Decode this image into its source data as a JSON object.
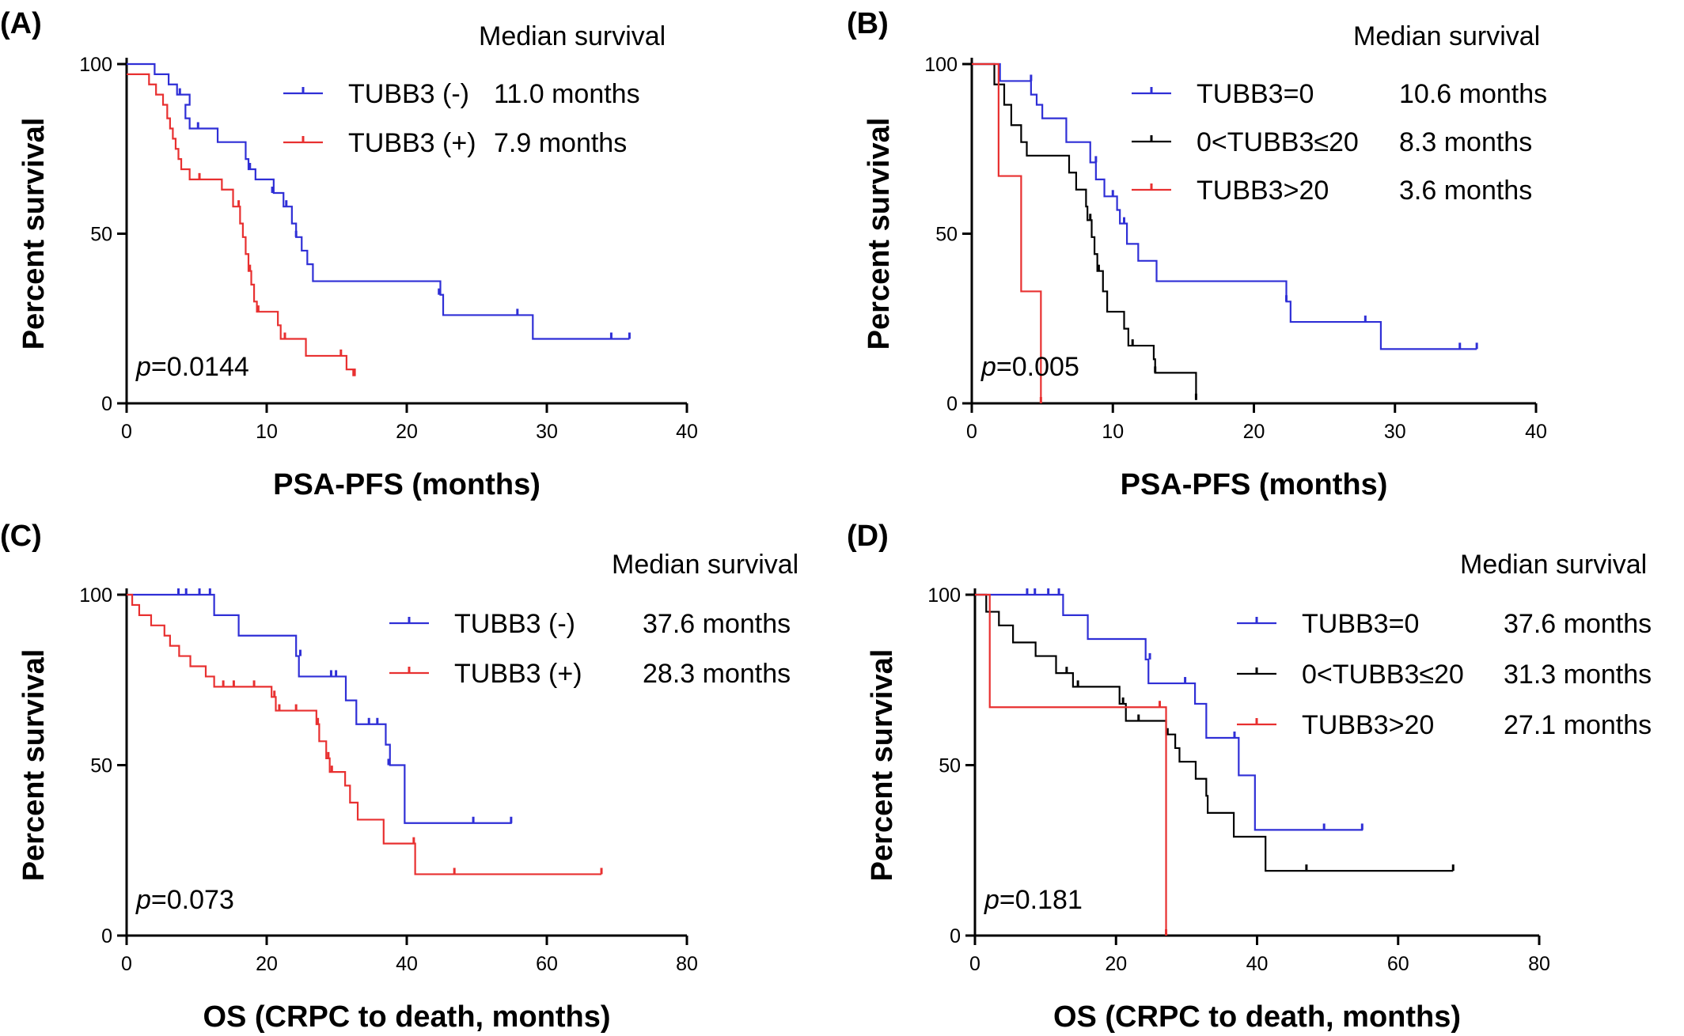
{
  "legend_heading": "Median survival",
  "p_prefix": "p",
  "chart_data": [
    {
      "panel": "(A)",
      "type": "line",
      "xlabel": "PSA-PFS (months)",
      "ylabel": "Percent survival",
      "xlim": [
        0,
        40
      ],
      "xticks": [
        0,
        10,
        20,
        30,
        40
      ],
      "xtick_labels": [
        "0",
        "10",
        "20",
        "30",
        "40"
      ],
      "ylim": [
        0,
        100
      ],
      "yticks": [
        0,
        50,
        100
      ],
      "ytick_labels": [
        "0",
        "50",
        "100"
      ],
      "p_value": "=0.0144",
      "series": [
        {
          "name": "TUBB3 (-)",
          "median": "11.0 months",
          "color": "#2f2fd6",
          "steps": [
            [
              0,
              100
            ],
            [
              2,
              97
            ],
            [
              3,
              94
            ],
            [
              3.6,
              91
            ],
            [
              4.5,
              88
            ],
            [
              4.2,
              84
            ],
            [
              4.5,
              81
            ],
            [
              6.5,
              77
            ],
            [
              8.5,
              72
            ],
            [
              8.7,
              69
            ],
            [
              9.2,
              66
            ],
            [
              10.5,
              62
            ],
            [
              11.2,
              58
            ],
            [
              11.8,
              53
            ],
            [
              12.1,
              49
            ],
            [
              12.5,
              45
            ],
            [
              12.9,
              41
            ],
            [
              13.3,
              36
            ],
            [
              22.4,
              32
            ],
            [
              22.6,
              26
            ],
            [
              29,
              19
            ],
            [
              35.9,
              19
            ]
          ],
          "censors": [
            [
              3.8,
              91
            ],
            [
              5.1,
              81
            ],
            [
              8.8,
              69
            ],
            [
              10.4,
              62
            ],
            [
              11.4,
              58
            ],
            [
              12.1,
              49
            ],
            [
              22.3,
              32
            ],
            [
              27.9,
              26
            ],
            [
              34.6,
              19
            ],
            [
              35.9,
              19
            ]
          ]
        },
        {
          "name": "TUBB3 (+)",
          "median": "7.9 months",
          "color": "#e83030",
          "steps": [
            [
              0,
              97
            ],
            [
              1.6,
              94
            ],
            [
              2.1,
              91
            ],
            [
              2.6,
              88
            ],
            [
              2.9,
              84
            ],
            [
              3.1,
              81
            ],
            [
              3.3,
              78
            ],
            [
              3.5,
              75
            ],
            [
              3.7,
              72
            ],
            [
              3.9,
              69
            ],
            [
              4.5,
              66
            ],
            [
              6.8,
              63
            ],
            [
              7.6,
              58
            ],
            [
              8.1,
              53
            ],
            [
              8.3,
              49
            ],
            [
              8.5,
              44
            ],
            [
              8.7,
              39
            ],
            [
              8.9,
              35
            ],
            [
              9.1,
              30
            ],
            [
              9.3,
              27
            ],
            [
              10.8,
              23
            ],
            [
              11,
              19
            ],
            [
              12.8,
              14
            ],
            [
              15.7,
              10
            ],
            [
              16.3,
              8
            ]
          ],
          "censors": [
            [
              5.2,
              66
            ],
            [
              8,
              58
            ],
            [
              8.8,
              39
            ],
            [
              9.4,
              27
            ],
            [
              11.3,
              19
            ],
            [
              15.3,
              14
            ],
            [
              16.2,
              8
            ]
          ]
        }
      ]
    },
    {
      "panel": "(B)",
      "type": "line",
      "xlabel": "PSA-PFS (months)",
      "ylabel": "Percent survival",
      "xlim": [
        0,
        40
      ],
      "xticks": [
        0,
        10,
        20,
        30,
        40
      ],
      "xtick_labels": [
        "0",
        "10",
        "20",
        "30",
        "40"
      ],
      "ylim": [
        0,
        100
      ],
      "yticks": [
        0,
        50,
        100
      ],
      "ytick_labels": [
        "0",
        "50",
        "100"
      ],
      "p_value": "=0.005",
      "series": [
        {
          "name": "TUBB3=0",
          "median": "10.6 months",
          "color": "#2f2fd6",
          "steps": [
            [
              0,
              100
            ],
            [
              2,
              95
            ],
            [
              4.2,
              91
            ],
            [
              4.6,
              88
            ],
            [
              5,
              84
            ],
            [
              6.7,
              77
            ],
            [
              8.4,
              71
            ],
            [
              8.8,
              66
            ],
            [
              9.4,
              61
            ],
            [
              10.3,
              57
            ],
            [
              10.5,
              53
            ],
            [
              11,
              47
            ],
            [
              11.8,
              42
            ],
            [
              13.1,
              36
            ],
            [
              22.3,
              30
            ],
            [
              22.6,
              24
            ],
            [
              29,
              16
            ],
            [
              35.8,
              16
            ]
          ],
          "censors": [
            [
              4.2,
              95
            ],
            [
              8.8,
              71
            ],
            [
              10,
              61
            ],
            [
              10.8,
              53
            ],
            [
              22.3,
              30
            ],
            [
              27.9,
              24
            ],
            [
              34.6,
              16
            ],
            [
              35.8,
              16
            ]
          ]
        },
        {
          "name": "0<TUBB3≤20",
          "median": "8.3 months",
          "color": "#000000",
          "steps": [
            [
              0,
              100
            ],
            [
              1.6,
              94
            ],
            [
              2.3,
              88
            ],
            [
              2.8,
              82
            ],
            [
              3.5,
              77
            ],
            [
              3.9,
              73
            ],
            [
              6.9,
              68
            ],
            [
              7.4,
              63
            ],
            [
              8.1,
              58
            ],
            [
              8.2,
              54
            ],
            [
              8.5,
              49
            ],
            [
              8.7,
              44
            ],
            [
              8.9,
              39
            ],
            [
              9.3,
              33
            ],
            [
              9.6,
              27
            ],
            [
              10.8,
              22
            ],
            [
              11.1,
              17
            ],
            [
              12.9,
              13
            ],
            [
              13,
              9
            ],
            [
              15.9,
              1
            ]
          ],
          "censors": [
            [
              8.4,
              54
            ],
            [
              9,
              39
            ],
            [
              11.4,
              17
            ],
            [
              13,
              9
            ],
            [
              15.9,
              1
            ]
          ]
        },
        {
          "name": "TUBB3>20",
          "median": "3.6 months",
          "color": "#e83030",
          "steps": [
            [
              0,
              100
            ],
            [
              1.9,
              67
            ],
            [
              3.5,
              33
            ],
            [
              4.9,
              0
            ]
          ],
          "censors": [
            [
              4.9,
              0
            ]
          ]
        }
      ]
    },
    {
      "panel": "(C)",
      "type": "line",
      "xlabel": "OS (CRPC to death, months)",
      "ylabel": "Percent survival",
      "xlim": [
        0,
        80
      ],
      "xticks": [
        0,
        20,
        40,
        60,
        80
      ],
      "xtick_labels": [
        "0",
        "20",
        "40",
        "60",
        "80"
      ],
      "ylim": [
        0,
        100
      ],
      "yticks": [
        0,
        50,
        100
      ],
      "ytick_labels": [
        "0",
        "50",
        "100"
      ],
      "p_value": "=0.073",
      "series": [
        {
          "name": "TUBB3 (-)",
          "median": "37.6 months",
          "color": "#2f2fd6",
          "steps": [
            [
              0,
              100
            ],
            [
              12.5,
              94
            ],
            [
              16,
              88
            ],
            [
              24.2,
              82
            ],
            [
              24.6,
              76
            ],
            [
              31.3,
              69
            ],
            [
              32.8,
              62
            ],
            [
              37,
              56
            ],
            [
              37.6,
              50
            ],
            [
              39.7,
              33
            ],
            [
              55,
              33
            ]
          ],
          "censors": [
            [
              7.4,
              100
            ],
            [
              8.5,
              100
            ],
            [
              10.4,
              100
            ],
            [
              11.9,
              100
            ],
            [
              24.8,
              82
            ],
            [
              29.2,
              76
            ],
            [
              29.9,
              76
            ],
            [
              34.6,
              62
            ],
            [
              35.8,
              62
            ],
            [
              37.4,
              50
            ],
            [
              49.5,
              33
            ],
            [
              54.9,
              33
            ]
          ]
        },
        {
          "name": "TUBB3 (+)",
          "median": "28.3 months",
          "color": "#e83030",
          "steps": [
            [
              0,
              100
            ],
            [
              0.8,
              97
            ],
            [
              1.8,
              94
            ],
            [
              3.5,
              91
            ],
            [
              5.4,
              88
            ],
            [
              6.2,
              85
            ],
            [
              7.5,
              82
            ],
            [
              9.1,
              79
            ],
            [
              11.3,
              76
            ],
            [
              12.5,
              73
            ],
            [
              20.7,
              70
            ],
            [
              21.3,
              66
            ],
            [
              22.7,
              66
            ],
            [
              27.1,
              62
            ],
            [
              27.5,
              57
            ],
            [
              28.5,
              52
            ],
            [
              29,
              48
            ],
            [
              31.2,
              44
            ],
            [
              31.9,
              39
            ],
            [
              33,
              34
            ],
            [
              36.7,
              27
            ],
            [
              41.2,
              18
            ],
            [
              67.8,
              18
            ]
          ],
          "censors": [
            [
              13.8,
              73
            ],
            [
              15.3,
              73
            ],
            [
              18.2,
              73
            ],
            [
              21.1,
              70
            ],
            [
              21.8,
              66
            ],
            [
              24.2,
              66
            ],
            [
              27.3,
              62
            ],
            [
              28.8,
              52
            ],
            [
              29.3,
              48
            ],
            [
              41,
              27
            ],
            [
              46.8,
              18
            ],
            [
              67.8,
              18
            ]
          ]
        }
      ]
    },
    {
      "panel": "(D)",
      "type": "line",
      "xlabel": "OS (CRPC to death, months)",
      "ylabel": "Percent survival",
      "xlim": [
        0,
        80
      ],
      "xticks": [
        0,
        20,
        40,
        60,
        80
      ],
      "xtick_labels": [
        "0",
        "20",
        "40",
        "60",
        "80"
      ],
      "ylim": [
        0,
        100
      ],
      "yticks": [
        0,
        50,
        100
      ],
      "ytick_labels": [
        "0",
        "50",
        "100"
      ],
      "p_value": "=0.181",
      "series": [
        {
          "name": "TUBB3=0",
          "median": "37.6 months",
          "color": "#2f2fd6",
          "steps": [
            [
              0,
              100
            ],
            [
              12.5,
              94
            ],
            [
              16,
              87
            ],
            [
              24.2,
              81
            ],
            [
              24.6,
              74
            ],
            [
              31.2,
              68
            ],
            [
              32.8,
              58
            ],
            [
              37.4,
              47
            ],
            [
              39.7,
              31
            ],
            [
              55,
              31
            ]
          ],
          "censors": [
            [
              7.4,
              100
            ],
            [
              8.5,
              100
            ],
            [
              10.4,
              100
            ],
            [
              11.9,
              100
            ],
            [
              24.8,
              81
            ],
            [
              29.8,
              74
            ],
            [
              36.8,
              58
            ],
            [
              49.5,
              31
            ],
            [
              54.9,
              31
            ]
          ]
        },
        {
          "name": "0<TUBB3≤20",
          "median": "31.3 months",
          "color": "#000000",
          "steps": [
            [
              0,
              100
            ],
            [
              1.6,
              95
            ],
            [
              3.4,
              91
            ],
            [
              5.4,
              86
            ],
            [
              8.6,
              82
            ],
            [
              11.5,
              77
            ],
            [
              13.9,
              73
            ],
            [
              20.5,
              68
            ],
            [
              21.4,
              63
            ],
            [
              27.1,
              59
            ],
            [
              28.4,
              55
            ],
            [
              29,
              51
            ],
            [
              31.3,
              46
            ],
            [
              32.8,
              41
            ],
            [
              33,
              36
            ],
            [
              36.7,
              29
            ],
            [
              41.2,
              19
            ],
            [
              67.8,
              19
            ]
          ],
          "censors": [
            [
              13,
              77
            ],
            [
              14.6,
              73
            ],
            [
              21,
              68
            ],
            [
              23.2,
              63
            ],
            [
              27.3,
              59
            ],
            [
              47,
              19
            ],
            [
              67.8,
              19
            ]
          ]
        },
        {
          "name": "TUBB3>20",
          "median": "27.1 months",
          "color": "#e83030",
          "steps": [
            [
              0,
              100
            ],
            [
              2.1,
              67
            ],
            [
              27.1,
              0
            ]
          ],
          "censors": [
            [
              26.2,
              67
            ],
            [
              27.1,
              0
            ]
          ]
        }
      ]
    }
  ]
}
